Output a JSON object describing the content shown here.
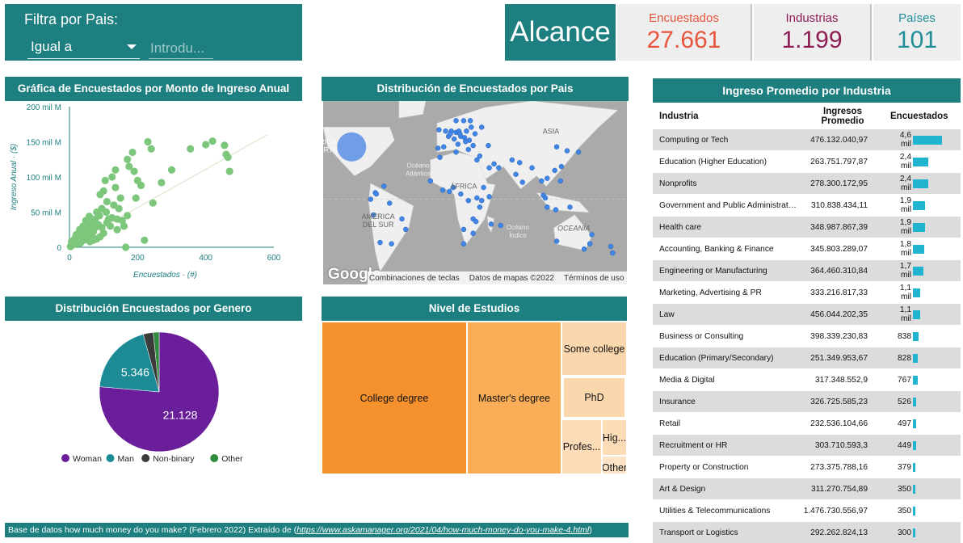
{
  "filter": {
    "title": "Filtra por Pais:",
    "operator": "Igual a",
    "placeholder": "Introdu..."
  },
  "kpis": {
    "title": "Alcance",
    "items": [
      {
        "label": "Encuestados",
        "value": "27.661",
        "color": "#e8553c"
      },
      {
        "label": "Industrias",
        "value": "1.199",
        "color": "#8e1c55"
      },
      {
        "label": "Países",
        "value": "101",
        "color": "#1f8d97"
      }
    ]
  },
  "scatter": {
    "title": "Gráfica de Encuestados por Monto de Ingreso Anual",
    "chart_data": {
      "type": "scatter",
      "xlabel": "Encuestados · (#)",
      "ylabel": "Ingreso Anual · ($)",
      "xlim": [
        0,
        600
      ],
      "ylim": [
        0,
        200
      ],
      "xticks": [
        "0",
        "200",
        "400",
        "600"
      ],
      "yticks": [
        "0",
        "50 mil M",
        "100 mil M",
        "150 mil M",
        "200 mil M"
      ],
      "trendline": [
        [
          0,
          2
        ],
        [
          580,
          160
        ]
      ],
      "points": [
        [
          470,
          108
        ],
        [
          460,
          132
        ],
        [
          455,
          145
        ],
        [
          420,
          151
        ],
        [
          465,
          128
        ],
        [
          400,
          146
        ],
        [
          355,
          140
        ],
        [
          300,
          110
        ],
        [
          270,
          92
        ],
        [
          210,
          88
        ],
        [
          195,
          70
        ],
        [
          245,
          63
        ],
        [
          190,
          108
        ],
        [
          185,
          135
        ],
        [
          230,
          150
        ],
        [
          240,
          140
        ],
        [
          170,
          125
        ],
        [
          135,
          110
        ],
        [
          125,
          100
        ],
        [
          105,
          95
        ],
        [
          100,
          80
        ],
        [
          90,
          75
        ],
        [
          130,
          60
        ],
        [
          150,
          70
        ],
        [
          170,
          45
        ],
        [
          140,
          40
        ],
        [
          95,
          55
        ],
        [
          80,
          50
        ],
        [
          60,
          30
        ],
        [
          50,
          25
        ],
        [
          45,
          20
        ],
        [
          40,
          15
        ],
        [
          30,
          12
        ],
        [
          20,
          10
        ],
        [
          15,
          6
        ],
        [
          10,
          4
        ],
        [
          8,
          3
        ],
        [
          5,
          2
        ],
        [
          25,
          5
        ],
        [
          35,
          8
        ],
        [
          55,
          12
        ],
        [
          65,
          18
        ],
        [
          70,
          22
        ],
        [
          75,
          28
        ],
        [
          85,
          32
        ],
        [
          110,
          35
        ],
        [
          115,
          40
        ],
        [
          120,
          30
        ],
        [
          100,
          20
        ],
        [
          90,
          15
        ],
        [
          80,
          12
        ],
        [
          70,
          10
        ],
        [
          60,
          8
        ],
        [
          140,
          25
        ],
        [
          160,
          30
        ],
        [
          165,
          0
        ],
        [
          220,
          10
        ],
        [
          200,
          95
        ],
        [
          175,
          115
        ],
        [
          135,
          85
        ],
        [
          110,
          65
        ],
        [
          40,
          30
        ],
        [
          30,
          25
        ],
        [
          20,
          18
        ],
        [
          12,
          10
        ],
        [
          48,
          38
        ],
        [
          58,
          44
        ],
        [
          68,
          35
        ],
        [
          88,
          45
        ],
        [
          108,
          50
        ],
        [
          125,
          42
        ],
        [
          145,
          55
        ],
        [
          155,
          38
        ],
        [
          95,
          28
        ],
        [
          75,
          40
        ],
        [
          62,
          22
        ],
        [
          52,
          16
        ],
        [
          42,
          10
        ],
        [
          32,
          6
        ],
        [
          22,
          4
        ],
        [
          18,
          14
        ],
        [
          28,
          20
        ],
        [
          38,
          26
        ],
        [
          6,
          8
        ],
        [
          3,
          1
        ]
      ]
    }
  },
  "map": {
    "title": "Distribución de Encuestados por Pais",
    "labels": {
      "asia": "ASIA",
      "africa": "ÁFRICA",
      "america": "AMÉRICA\nDEL SUR",
      "oceania": "OCEANÍA",
      "atlantic": "Océano\nAtlántico",
      "indian": "Océano\nÍndico",
      "america_n": "RICA\nORTE"
    },
    "logo": "Google",
    "footer": [
      "Combinaciones de teclas",
      "Datos de mapas ©2022",
      "Términos de uso"
    ],
    "chart_data": {
      "type": "scatter",
      "description_points_lonlat": [
        [
          -100,
          40,
          18
        ],
        [
          -75,
          5,
          3
        ],
        [
          -77,
          -12,
          3
        ],
        [
          -58,
          -34,
          3
        ],
        [
          -70,
          -33,
          3
        ],
        [
          -47,
          -15,
          3
        ],
        [
          -43,
          -23,
          3
        ],
        [
          -66,
          10,
          3
        ],
        [
          -80,
          0,
          3
        ],
        [
          -74,
          4,
          3
        ],
        [
          -60,
          -3,
          3
        ],
        [
          -3,
          40,
          3
        ],
        [
          2,
          48,
          3
        ],
        [
          -1,
          52,
          3
        ],
        [
          5,
          52,
          3
        ],
        [
          10,
          51,
          3
        ],
        [
          13,
          52,
          3
        ],
        [
          15,
          48,
          3
        ],
        [
          19,
          47,
          3
        ],
        [
          21,
          52,
          3
        ],
        [
          25,
          60,
          3
        ],
        [
          18,
          60,
          3
        ],
        [
          10,
          60,
          3
        ],
        [
          -8,
          53,
          3
        ],
        [
          12,
          42,
          3
        ],
        [
          23,
          38,
          3
        ],
        [
          28,
          41,
          3
        ],
        [
          30,
          50,
          3
        ],
        [
          37,
          55,
          3
        ],
        [
          24,
          45,
          3
        ],
        [
          -9,
          39,
          3
        ],
        [
          8,
          46,
          3
        ],
        [
          4,
          50,
          3
        ],
        [
          14,
          50,
          3
        ],
        [
          20,
          44,
          3
        ],
        [
          26,
          55,
          3
        ],
        [
          44,
          41,
          3
        ],
        [
          35,
          33,
          3
        ],
        [
          32,
          30,
          3
        ],
        [
          50,
          27,
          3
        ],
        [
          55,
          24,
          3
        ],
        [
          45,
          24,
          3
        ],
        [
          69,
          30,
          3
        ],
        [
          77,
          28,
          3
        ],
        [
          73,
          19,
          3
        ],
        [
          80,
          13,
          3
        ],
        [
          90,
          24,
          3
        ],
        [
          100,
          14,
          3
        ],
        [
          106,
          16,
          3
        ],
        [
          102,
          3,
          3
        ],
        [
          104,
          1,
          3
        ],
        [
          120,
          14,
          3
        ],
        [
          114,
          22,
          3
        ],
        [
          121,
          25,
          3
        ],
        [
          127,
          37,
          3
        ],
        [
          139,
          36,
          3
        ],
        [
          116,
          40,
          3
        ],
        [
          106,
          -6,
          3
        ],
        [
          115,
          -8,
          3
        ],
        [
          130,
          -6,
          3
        ],
        [
          -17,
          14,
          3
        ],
        [
          -4,
          7,
          3
        ],
        [
          3,
          6,
          3
        ],
        [
          7,
          9,
          3
        ],
        [
          15,
          4,
          3
        ],
        [
          23,
          -1,
          3
        ],
        [
          32,
          1,
          3
        ],
        [
          37,
          -1,
          3
        ],
        [
          39,
          9,
          3
        ],
        [
          45,
          2,
          3
        ],
        [
          35,
          -6,
          3
        ],
        [
          28,
          -15,
          3
        ],
        [
          31,
          -17,
          3
        ],
        [
          18,
          -23,
          3
        ],
        [
          28,
          -26,
          3
        ],
        [
          18,
          -34,
          3
        ],
        [
          47,
          -19,
          3
        ],
        [
          57,
          -20,
          3
        ],
        [
          -7,
          32,
          3
        ],
        [
          10,
          36,
          3
        ],
        [
          151,
          -34,
          3
        ],
        [
          145,
          -38,
          3
        ],
        [
          153,
          -27,
          3
        ],
        [
          116,
          -32,
          3
        ],
        [
          175,
          -41,
          3
        ],
        [
          173,
          -36,
          3
        ]
      ]
    }
  },
  "gender": {
    "title": "Distribución Encuestados por Genero",
    "chart_data": {
      "type": "pie",
      "slices": [
        {
          "name": "Woman",
          "value": 21128,
          "label": "21.128",
          "color": "#6a1e99"
        },
        {
          "name": "Man",
          "value": 5346,
          "label": "5.346",
          "color": "#1c8b96"
        },
        {
          "name": "Non-binary",
          "value": 750,
          "label": "",
          "color": "#3b3b3b"
        },
        {
          "name": "Other",
          "value": 437,
          "label": "",
          "color": "#2e8b3e"
        }
      ]
    }
  },
  "estudios": {
    "title": "Nivel de Estudios",
    "chart_data": {
      "type": "treemap",
      "items": [
        {
          "name": "College degree",
          "color": "#f6922e"
        },
        {
          "name": "Master's degree",
          "color": "#f8ad56"
        },
        {
          "name": "Some college",
          "color": "#fbd7ad"
        },
        {
          "name": "PhD",
          "color": "#fbd7ad"
        },
        {
          "name": "Profes...",
          "color": "#fcdcb7"
        },
        {
          "name": "Hig...",
          "color": "#fcdcb7"
        },
        {
          "name": "Other",
          "color": "#fde3c6"
        }
      ]
    }
  },
  "industria": {
    "title": "Ingreso Promedio por Industria",
    "headers": {
      "industria": "Industria",
      "ingresos": "Ingresos Promedio",
      "encuestados": "Encuestados"
    },
    "max_count": 4600,
    "rows": [
      {
        "name": "Computing or Tech",
        "income": "476.132.040,97",
        "count_label": "4,6 mil",
        "count": 4600
      },
      {
        "name": "Education (Higher Education)",
        "income": "263.751.797,87",
        "count_label": "2,4 mil",
        "count": 2400
      },
      {
        "name": "Nonprofits",
        "income": "278.300.172,95",
        "count_label": "2,4 mil",
        "count": 2400
      },
      {
        "name": "Government and Public Administrati...",
        "income": "310.838.434,11",
        "count_label": "1,9 mil",
        "count": 1900
      },
      {
        "name": "Health care",
        "income": "348.987.867,39",
        "count_label": "1,9 mil",
        "count": 1900
      },
      {
        "name": "Accounting, Banking & Finance",
        "income": "345.803.289,07",
        "count_label": "1,8 mil",
        "count": 1800
      },
      {
        "name": "Engineering or Manufacturing",
        "income": "364.460.310,84",
        "count_label": "1,7 mil",
        "count": 1700
      },
      {
        "name": "Marketing, Advertising & PR",
        "income": "333.216.817,33",
        "count_label": "1,1 mil",
        "count": 1100
      },
      {
        "name": "Law",
        "income": "456.044.202,35",
        "count_label": "1,1 mil",
        "count": 1100
      },
      {
        "name": "Business or Consulting",
        "income": "398.339.230,83",
        "count_label": "838",
        "count": 838
      },
      {
        "name": "Education (Primary/Secondary)",
        "income": "251.349.953,67",
        "count_label": "828",
        "count": 828
      },
      {
        "name": "Media & Digital",
        "income": "317.348.552,9",
        "count_label": "767",
        "count": 767
      },
      {
        "name": "Insurance",
        "income": "326.725.585,23",
        "count_label": "526",
        "count": 526
      },
      {
        "name": "Retail",
        "income": "232.536.104,66",
        "count_label": "497",
        "count": 497
      },
      {
        "name": "Recruitment or HR",
        "income": "303.710.593,3",
        "count_label": "449",
        "count": 449
      },
      {
        "name": "Property or Construction",
        "income": "273.375.788,16",
        "count_label": "379",
        "count": 379
      },
      {
        "name": "Art & Design",
        "income": "311.270.754,89",
        "count_label": "350",
        "count": 350
      },
      {
        "name": "Utilities & Telecommunications",
        "income": "1.476.730.556,97",
        "count_label": "350",
        "count": 350
      },
      {
        "name": "Transport or Logistics",
        "income": "292.262.824,13",
        "count_label": "300",
        "count": 300
      }
    ]
  },
  "footer": {
    "text": "Base de datos how much money do you make? (Febrero 2022) Extraído de (",
    "link": "https://www.askamanager.org/2021/04/how-much-money-do-you-make-4.html",
    "end": ")"
  }
}
